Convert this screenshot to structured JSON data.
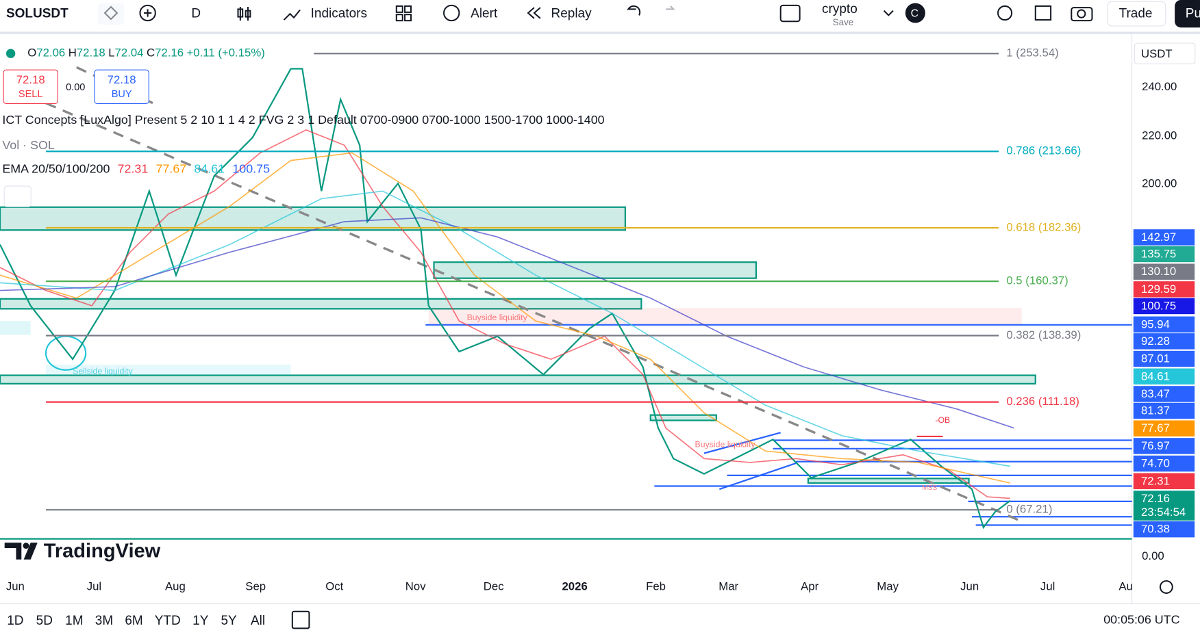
{
  "toolbar": {
    "symbol": "SOLUSDT",
    "interval": "D",
    "indicators": "Indicators",
    "alert": "Alert",
    "replay": "Replay",
    "layout_name": "crypto",
    "save": "Save",
    "avatar": "C",
    "trade": "Trade",
    "publish": "Pu"
  },
  "legend": {
    "ohlc": [
      {
        "label": "O",
        "value": "72.06"
      },
      {
        "label": "H",
        "value": "72.18"
      },
      {
        "label": "L",
        "value": "72.04"
      },
      {
        "label": "C",
        "value": "72.16"
      }
    ],
    "change": "+0.11 (+0.15%)",
    "sell_price": "72.18",
    "sell": "SELL",
    "spread": "0.00",
    "buy_price": "72.18",
    "buy": "BUY",
    "ict": "ICT Concepts [LuxAlgo] Present 5 2 10 1 1 4 2 FVG 2 3 1 Default 0700-0900 0700-1000 1500-1700 1000-1400",
    "vol": "Vol · SOL",
    "ema_name": "EMA 20/50/100/200",
    "ema_values": [
      {
        "value": "72.31",
        "color": "#f23645"
      },
      {
        "value": "77.67",
        "color": "#ff9800"
      },
      {
        "value": "84.61",
        "color": "#26c6da"
      },
      {
        "value": "100.75",
        "color": "#2962ff"
      }
    ]
  },
  "fib_levels": [
    {
      "label": "1 (253.54)",
      "color": "#787b86"
    },
    {
      "label": "0.786 (213.66)",
      "color": "#00acc1"
    },
    {
      "label": "0.618 (182.36)",
      "color": "#e0b020"
    },
    {
      "label": "0.5 (160.37)",
      "color": "#4caf50"
    },
    {
      "label": "0.382 (138.39)",
      "color": "#787b86"
    },
    {
      "label": "0.236 (111.18)",
      "color": "#f23645"
    },
    {
      "label": "0 (67.21)",
      "color": "#787b86"
    }
  ],
  "annotations": [
    {
      "label": "Buyside liquidity",
      "color": "#f7797c"
    },
    {
      "label": "Sellside liquidity",
      "color": "#4dd0e1"
    },
    {
      "label": "Buyside liquidity",
      "color": "#f7797c"
    },
    {
      "label": "-OB",
      "color": "#f23645"
    },
    {
      "label": "MSS",
      "color": "#f7797c"
    }
  ],
  "price_axis": {
    "currency": "USDT",
    "ticks": [
      "240.00",
      "220.00",
      "200.00",
      "0.00"
    ]
  },
  "price_tags": [
    {
      "label": "142.97",
      "color": "#2962ff"
    },
    {
      "label": "135.75",
      "color": "#22ab94"
    },
    {
      "label": "130.10",
      "color": "#787b86"
    },
    {
      "label": "129.59",
      "color": "#f23645"
    },
    {
      "label": "100.75",
      "color": "#1717e6"
    },
    {
      "label": "95.94",
      "color": "#2962ff"
    },
    {
      "label": "92.28",
      "color": "#2962ff"
    },
    {
      "label": "87.01",
      "color": "#2962ff"
    },
    {
      "label": "84.61",
      "color": "#26c6da"
    },
    {
      "label": "83.47",
      "color": "#2962ff"
    },
    {
      "label": "81.37",
      "color": "#2962ff"
    },
    {
      "label": "77.67",
      "color": "#ff9800"
    },
    {
      "label": "76.97",
      "color": "#2962ff"
    },
    {
      "label": "74.70",
      "color": "#2962ff"
    },
    {
      "label": "72.31",
      "color": "#f23645"
    },
    {
      "label": "72.16",
      "color": "#089981"
    },
    {
      "label": "70.38",
      "color": "#2962ff"
    }
  ],
  "countdown": "23:54:54",
  "time_axis": [
    "Jun",
    "Jul",
    "Aug",
    "Sep",
    "Oct",
    "Nov",
    "Dec",
    "2026",
    "Feb",
    "Mar",
    "Apr",
    "May",
    "Jun",
    "Jul",
    "Au"
  ],
  "ranges": [
    "1D",
    "5D",
    "1M",
    "3M",
    "6M",
    "YTD",
    "1Y",
    "5Y",
    "All"
  ],
  "clock": "00:05:06 UTC",
  "brand": "TradingView"
}
